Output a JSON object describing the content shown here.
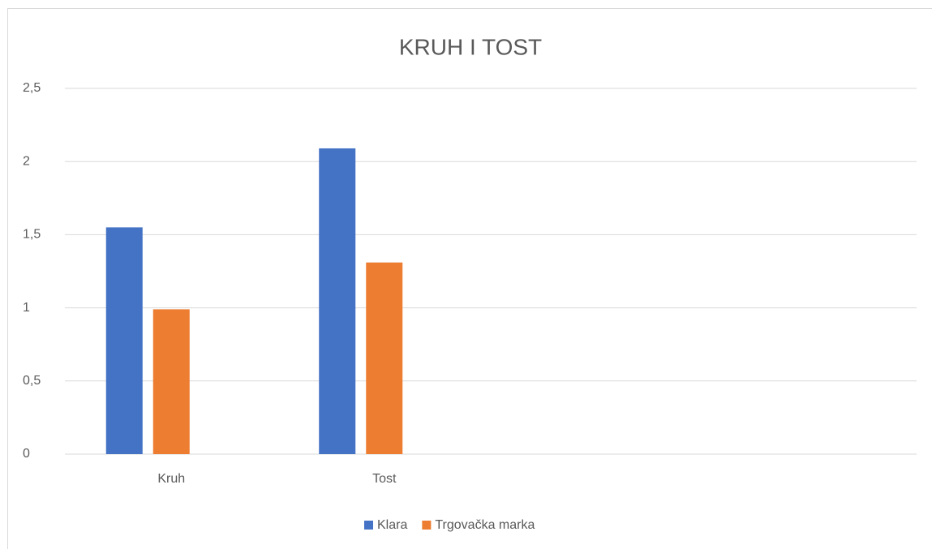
{
  "chart_data": {
    "type": "bar",
    "title": "KRUH I TOST",
    "categories": [
      "Kruh",
      "Tost",
      null,
      null
    ],
    "series": [
      {
        "name": "Klara",
        "color": "#4472c4",
        "values": [
          1.55,
          2.09,
          null,
          null
        ]
      },
      {
        "name": "Trgovačka marka",
        "color": "#ed7d31",
        "values": [
          0.99,
          1.31,
          null,
          null
        ]
      }
    ],
    "ylim": [
      0,
      2.5
    ],
    "yticks": [
      0,
      {
        "value": 0.5,
        "label": "0,5"
      },
      1,
      {
        "value": 1.5,
        "label": "1,5"
      },
      2,
      {
        "value": 2.5,
        "label": "2,5"
      }
    ],
    "grid": true,
    "legend": "bottom"
  }
}
